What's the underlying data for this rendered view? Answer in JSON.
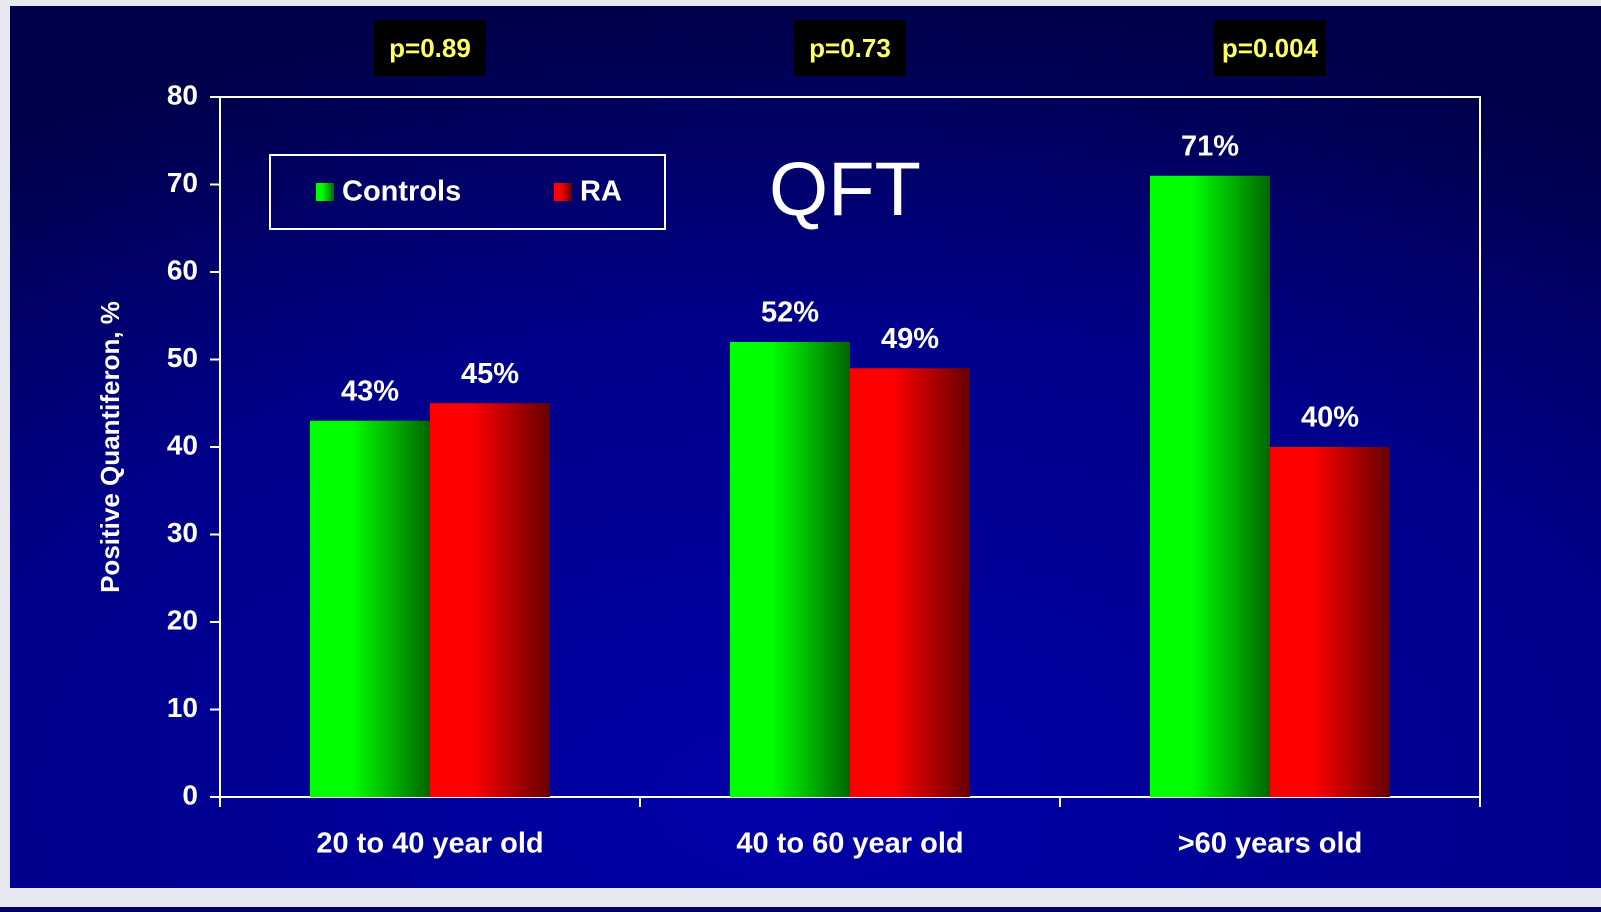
{
  "chart_data": {
    "type": "bar",
    "title": "QFT",
    "annotations": [
      "p=0.89",
      "p=0.73",
      "p=0.004"
    ],
    "y_label": "Positive Quantiferon, %",
    "categories": [
      "20 to 40 year old",
      "40 to 60 year old",
      ">60 years old"
    ],
    "series": [
      {
        "name": "Controls",
        "color": "#00ff00",
        "values": [
          43,
          52,
          71
        ],
        "value_labels": [
          "43%",
          "52%",
          "71%"
        ]
      },
      {
        "name": "RA",
        "color": "#ff0000",
        "values": [
          45,
          49,
          40
        ],
        "value_labels": [
          "45%",
          "49%",
          "40%"
        ]
      }
    ],
    "ylim": [
      0,
      80
    ],
    "yticks": [
      0,
      10,
      20,
      30,
      40,
      50,
      60,
      70,
      80
    ],
    "legend": "top-left"
  }
}
